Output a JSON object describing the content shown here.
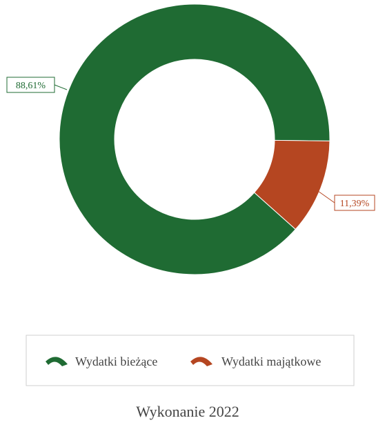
{
  "chart_data": {
    "type": "pie",
    "variant": "donut",
    "categories": [
      "Wydatki bieżące",
      "Wydatki majątkowe"
    ],
    "values": [
      88.61,
      11.39
    ],
    "labels": [
      "88,61%",
      "11,39%"
    ],
    "title": "Wykonanie 2022",
    "legend": {
      "placement": "bottom",
      "entries": [
        "Wydatki bieżące",
        "Wydatki majątkowe"
      ]
    },
    "colors": [
      "#1f6b33",
      "#b54621"
    ],
    "label_border_colors": [
      "#1f6b33",
      "#b54621"
    ]
  }
}
